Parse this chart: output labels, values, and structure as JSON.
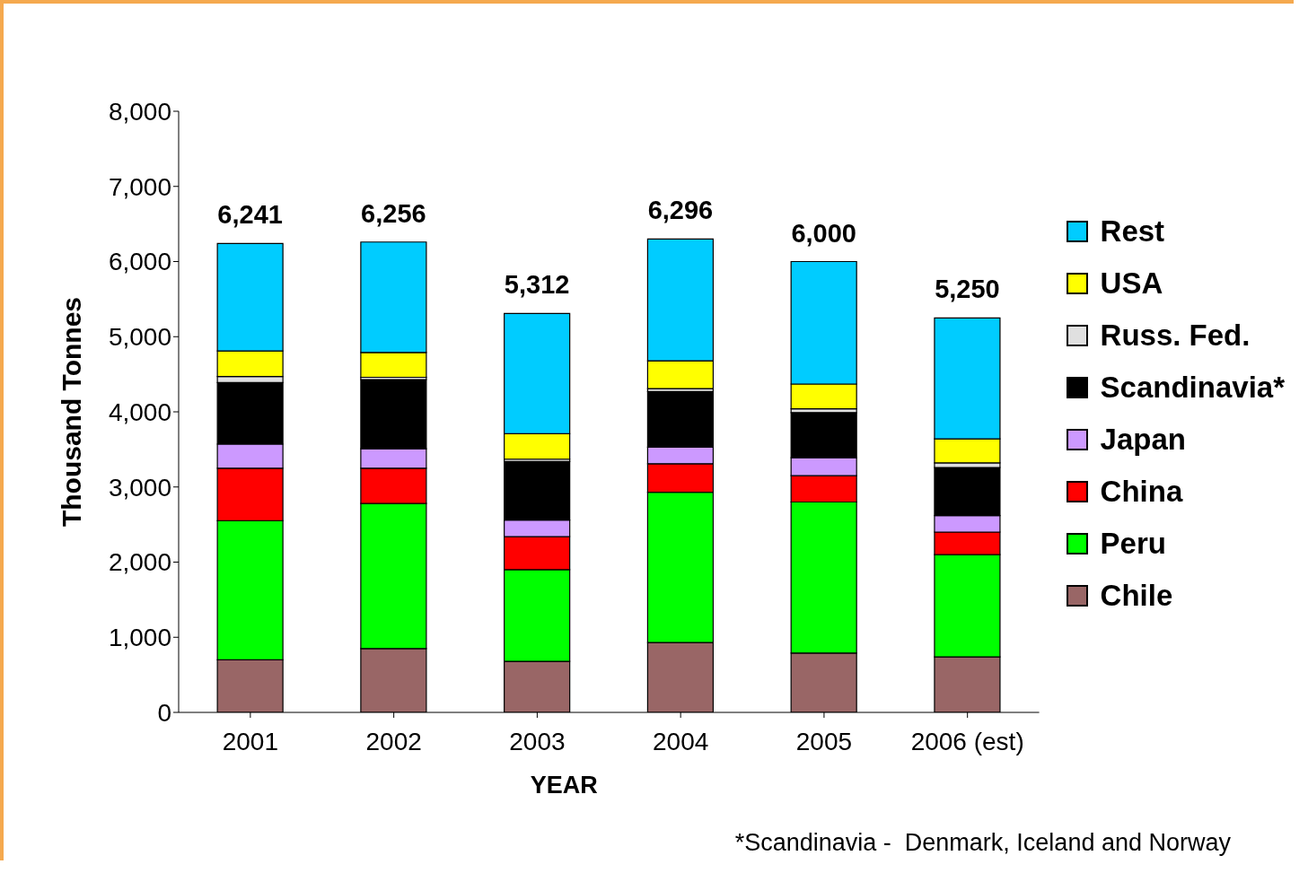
{
  "chart_data": {
    "type": "bar",
    "stacked": true,
    "xlabel": "YEAR",
    "ylabel": "Thousand Tonnes",
    "categories": [
      "2001",
      "2002",
      "2003",
      "2004",
      "2005",
      "2006 (est)"
    ],
    "series": [
      {
        "name": "Chile",
        "color": "#996666",
        "values": [
          700,
          850,
          680,
          930,
          790,
          740
        ]
      },
      {
        "name": "Peru",
        "color": "#00ff00",
        "values": [
          1850,
          1930,
          1220,
          2000,
          2010,
          1360
        ]
      },
      {
        "name": "China",
        "color": "#ff0000",
        "values": [
          700,
          470,
          440,
          380,
          350,
          300
        ]
      },
      {
        "name": "Japan",
        "color": "#cc99ff",
        "values": [
          320,
          260,
          220,
          220,
          240,
          220
        ]
      },
      {
        "name": "Scandinavia*",
        "color": "#000000",
        "values": [
          820,
          920,
          780,
          740,
          600,
          640
        ]
      },
      {
        "name": "Russ. Fed.",
        "color": "#e0e0e0",
        "values": [
          80,
          30,
          30,
          40,
          50,
          60
        ]
      },
      {
        "name": "USA",
        "color": "#ffff00",
        "values": [
          340,
          330,
          340,
          370,
          330,
          320
        ]
      },
      {
        "name": "Rest",
        "color": "#00ccff",
        "values": [
          1430,
          1470,
          1600,
          1620,
          1630,
          1610
        ]
      }
    ],
    "totals": [
      "6,241",
      "6,256",
      "5,312",
      "6,296",
      "6,000",
      "5,250"
    ],
    "ylim": [
      0,
      8000
    ],
    "yticks": [
      0,
      {
        "value": 1000,
        "label": "1,000"
      },
      {
        "value": 2000,
        "label": "2,000"
      },
      {
        "value": 3000,
        "label": "3,000"
      },
      {
        "value": 4000,
        "label": "4,000"
      },
      {
        "value": 5000,
        "label": "5,000"
      },
      {
        "value": 6000,
        "label": "6,000"
      },
      {
        "value": 7000,
        "label": "7,000"
      },
      {
        "value": 8000,
        "label": "8,000"
      }
    ],
    "grid": false,
    "legend": "right",
    "annotations": [
      "*Scandinavia -  Denmark, Iceland and Norway"
    ]
  }
}
